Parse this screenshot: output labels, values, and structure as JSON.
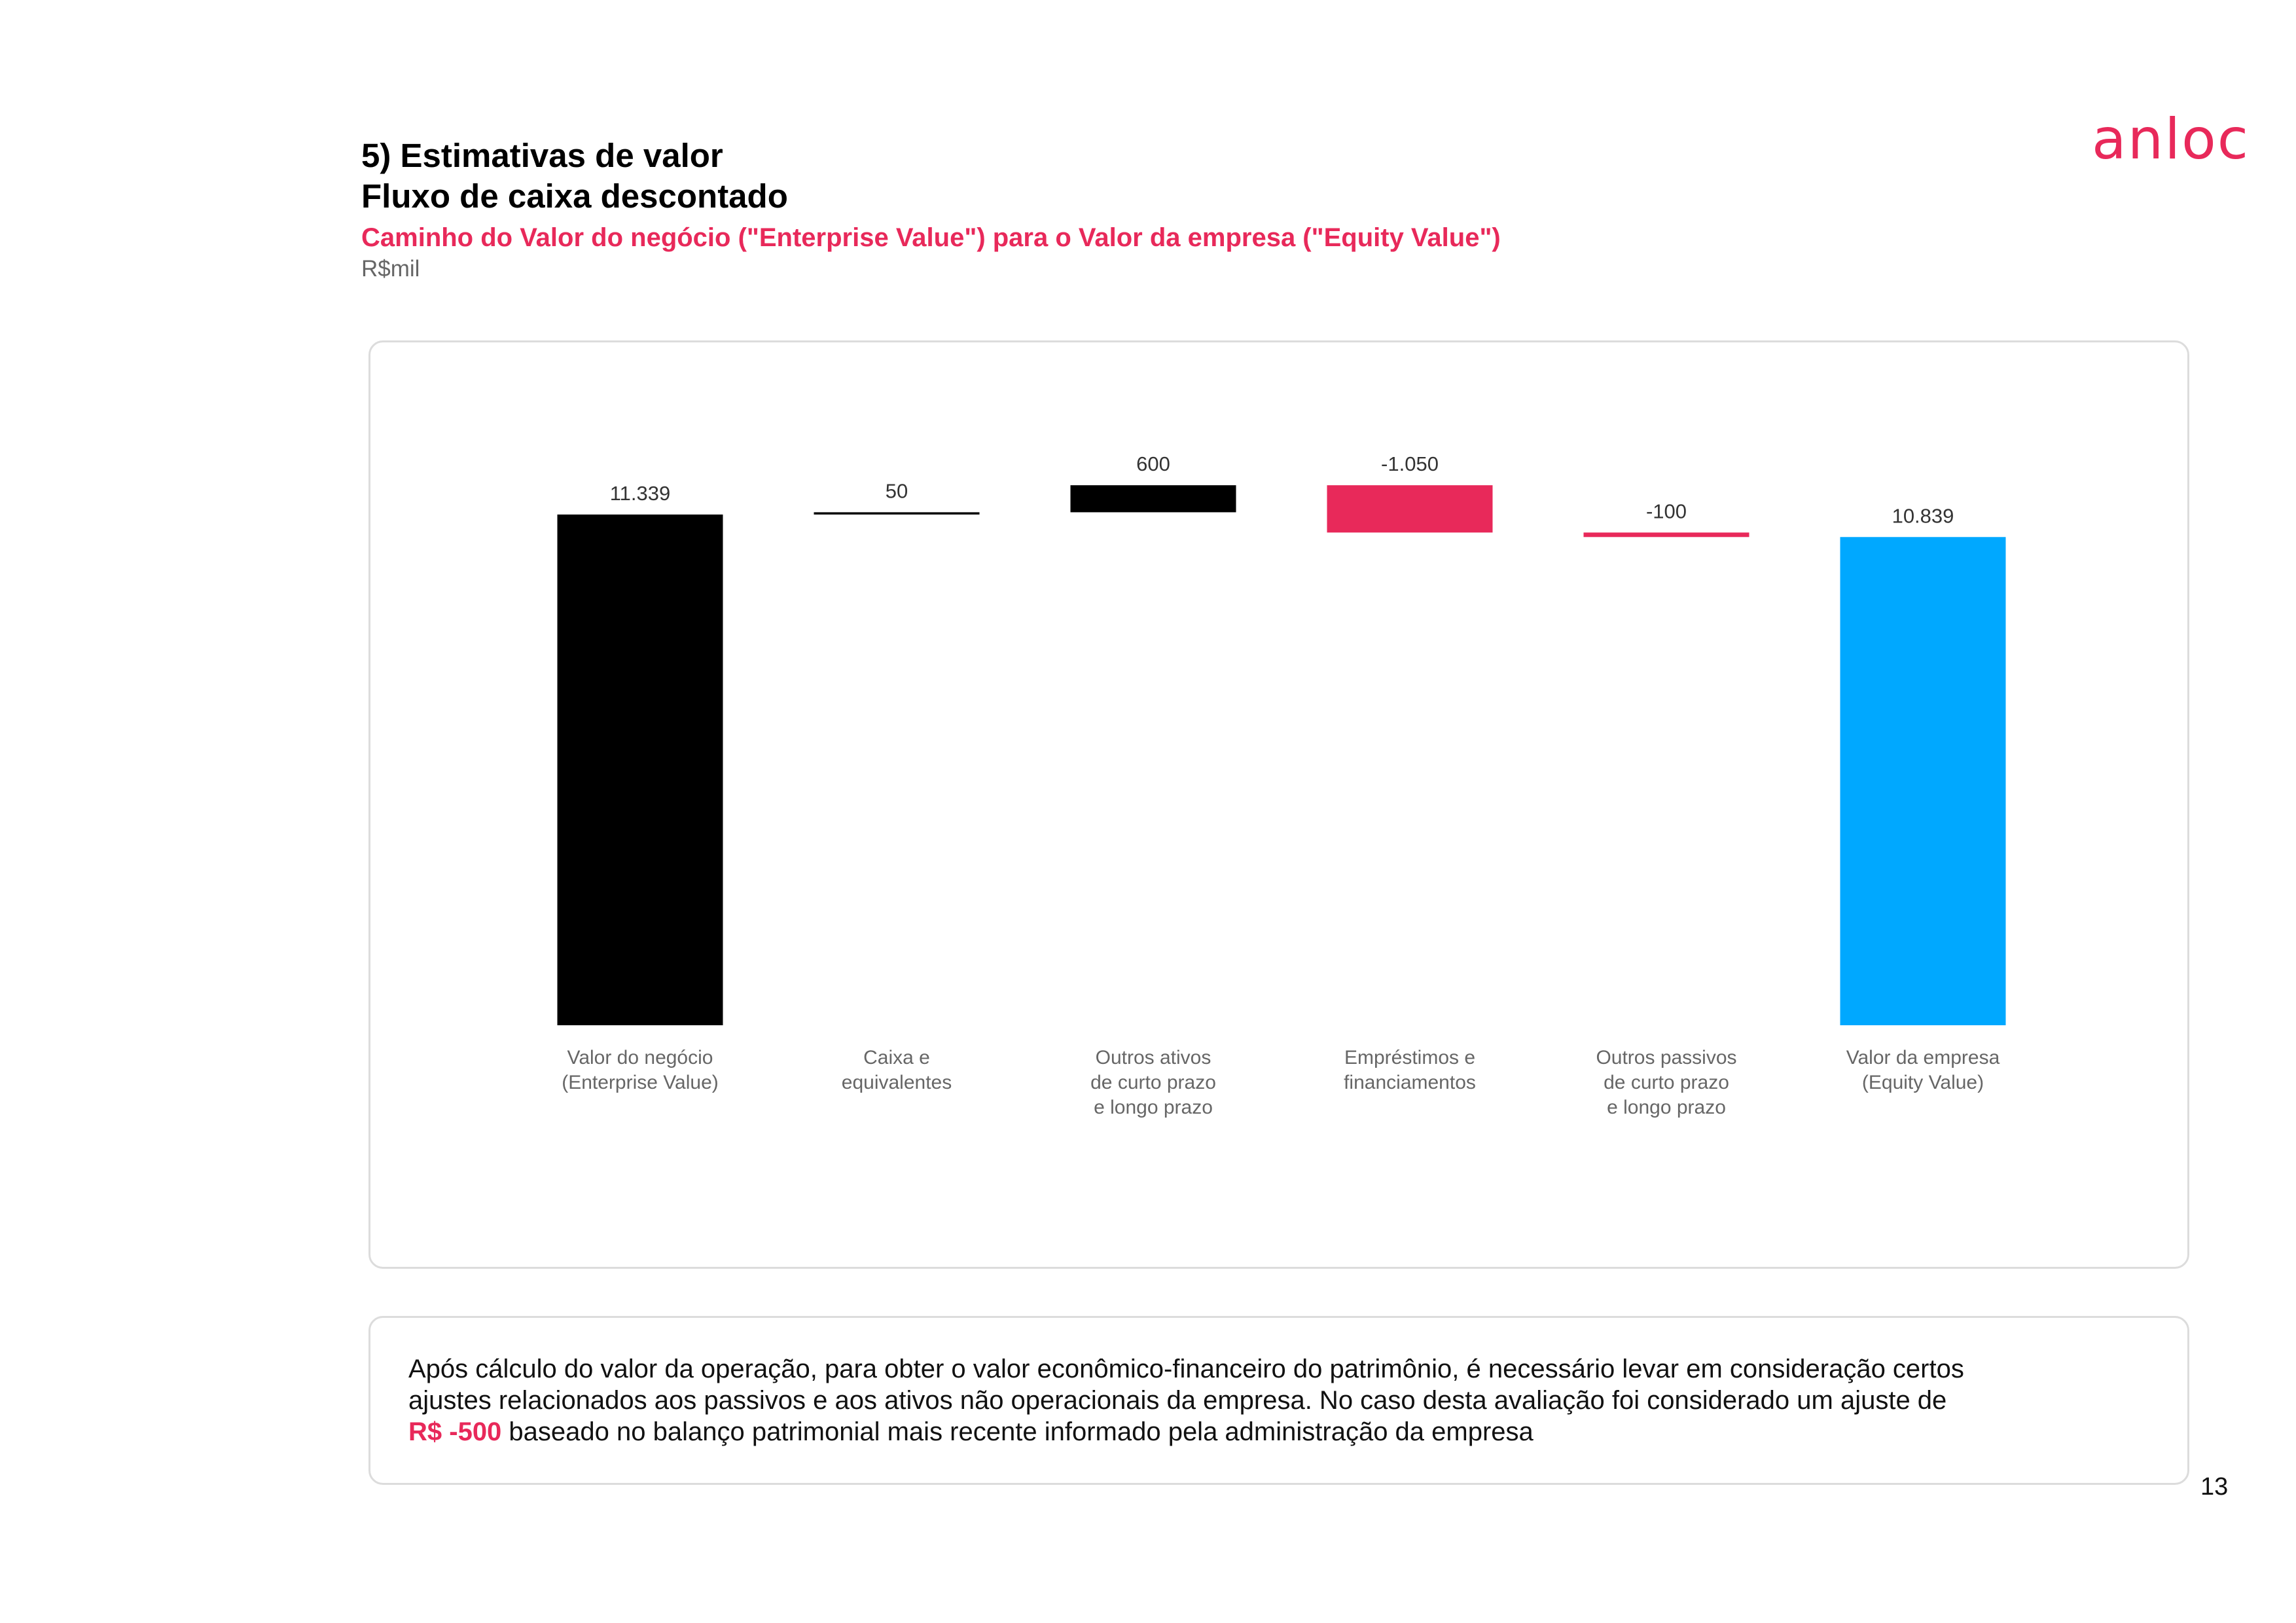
{
  "header": {
    "title_line1": "5) Estimativas de valor",
    "title_line2": "Fluxo de caixa descontado",
    "subtitle": "Caminho do Valor do negócio (\"Enterprise Value\") para o Valor da empresa (\"Equity Value\")",
    "unit": "R$mil"
  },
  "logo": {
    "text": "anloc",
    "color": "#e8295a"
  },
  "chart_data": {
    "type": "bar",
    "subtype": "waterfall",
    "categories": [
      [
        "Valor do negócio",
        "(Enterprise Value)"
      ],
      [
        "Caixa e",
        "equivalentes"
      ],
      [
        "Outros ativos",
        "de curto prazo",
        "e longo prazo"
      ],
      [
        "Empréstimos e",
        "financiamentos"
      ],
      [
        "Outros passivos",
        "de curto prazo",
        "e longo prazo"
      ],
      [
        "Valor da empresa",
        "(Equity Value)"
      ]
    ],
    "values": [
      11339,
      50,
      600,
      -1050,
      -100,
      10839
    ],
    "bar_kind": [
      "total",
      "delta",
      "delta",
      "delta",
      "delta",
      "total"
    ],
    "data_labels": [
      "11.339",
      "50",
      "600",
      "-1.050",
      "-100",
      "10.839"
    ],
    "colors": [
      "#000000",
      "#000000",
      "#000000",
      "#e8295a",
      "#e8295a",
      "#00a8ff"
    ],
    "ylim": [
      0,
      12000
    ],
    "grid": false,
    "legend": "none"
  },
  "note": {
    "line1": "Após cálculo do valor da operação, para obter o valor econômico-financeiro do patrimônio, é necessário levar em consideração certos",
    "line2": "ajustes relacionados aos passivos e aos ativos não operacionais da empresa. No caso desta avaliação foi considerado um ajuste de",
    "highlight": "R$ -500",
    "line3_rest": " baseado no balanço patrimonial mais recente informado pela administração da empresa"
  },
  "page_number": "13"
}
